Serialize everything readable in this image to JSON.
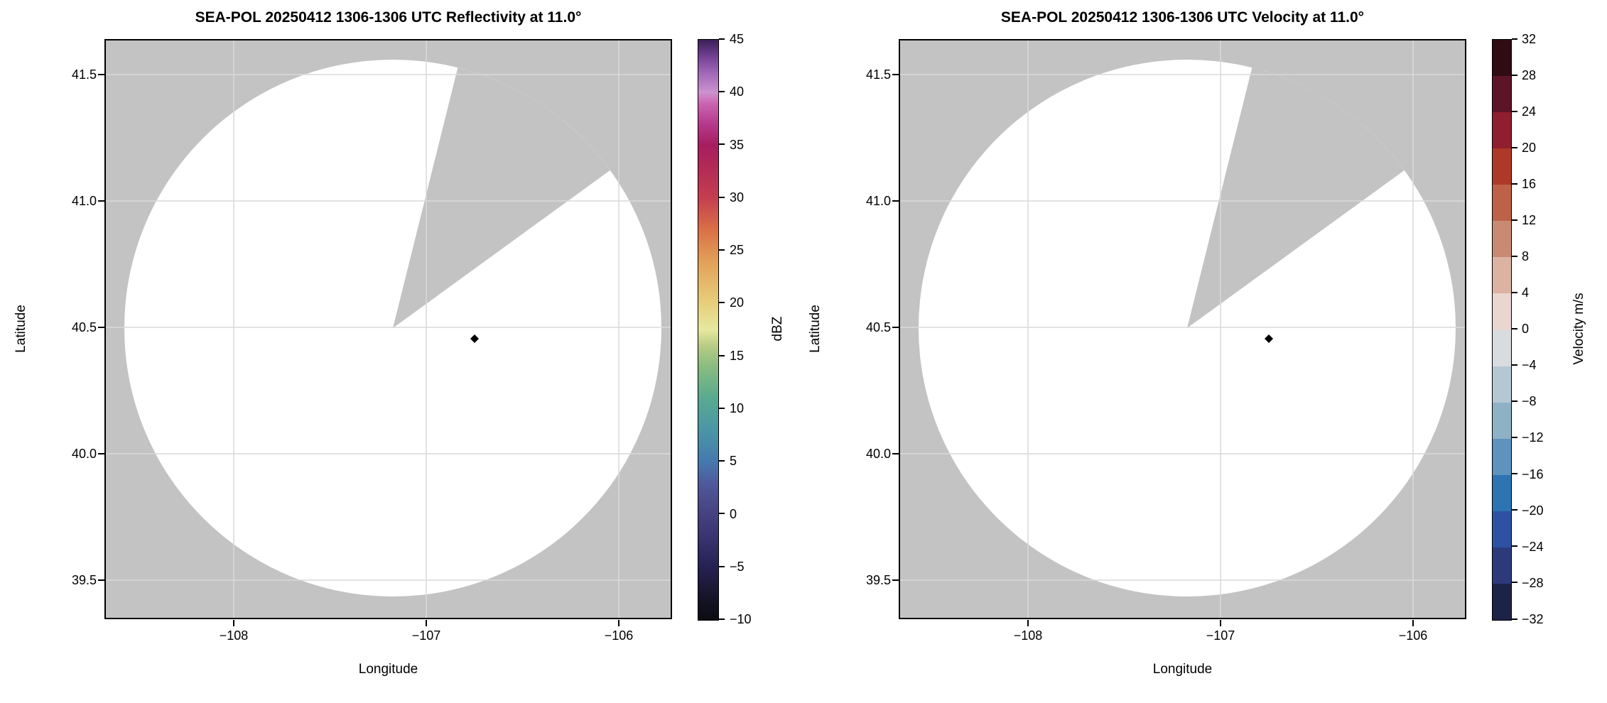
{
  "colors": {
    "page_background": "#ffffff",
    "no_data_gray": "#c3c3c3",
    "scan_area_white": "#ffffff",
    "gridline": "#d9d9d9",
    "axis_black": "#000000",
    "marker_black": "#000000"
  },
  "panels": [
    {
      "id": "reflectivity",
      "title": "SEA-POL 20250412 1306-1306 UTC Reflectivity at 11.0°",
      "xlabel": "Longitude",
      "ylabel": "Latitude",
      "x_tick_labels": [
        "−108",
        "−107",
        "−106"
      ],
      "y_tick_labels": [
        "41.5",
        "41.0",
        "40.5",
        "40.0",
        "39.5"
      ],
      "colorbar_label": "dBZ",
      "colorbar_tick_labels": [
        "45",
        "40",
        "35",
        "30",
        "25",
        "20",
        "15",
        "10",
        "5",
        "0",
        "−5",
        "−10"
      ]
    },
    {
      "id": "velocity",
      "title": "SEA-POL 20250412 1306-1306 UTC Velocity at 11.0°",
      "xlabel": "Longitude",
      "ylabel": "Latitude",
      "x_tick_labels": [
        "−108",
        "−107",
        "−106"
      ],
      "y_tick_labels": [
        "41.5",
        "41.0",
        "40.5",
        "40.0",
        "39.5"
      ],
      "colorbar_label": "Velocity m/s",
      "colorbar_tick_labels": [
        "32",
        "28",
        "24",
        "20",
        "16",
        "12",
        "8",
        "4",
        "0",
        "−4",
        "−8",
        "−12",
        "−16",
        "−20",
        "−24",
        "−28",
        "−32"
      ]
    }
  ],
  "chart_data": [
    {
      "type": "heatmap",
      "field": "radar_reflectivity_ppi",
      "title": "SEA-POL 20250412 1306-1306 UTC Reflectivity at 11.0°",
      "xlabel": "Longitude",
      "ylabel": "Latitude",
      "xlim": [
        -108.67,
        -105.72
      ],
      "ylim": [
        39.35,
        41.64
      ],
      "x_ticks": [
        -108,
        -107,
        -106
      ],
      "y_ticks": [
        41.5,
        41.0,
        40.5,
        40.0,
        39.5
      ],
      "grid": true,
      "elevation_deg": 11.0,
      "radar_center": {
        "lon": -107.17,
        "lat": 40.5
      },
      "scan_radius_deg_lat": 1.06,
      "missing_sector_azimuth_deg": [
        14,
        54
      ],
      "echo_coverage": "scan area blank white (no echoes shown); outside scan and missing sector shaded gray",
      "marker": {
        "lon": -106.75,
        "lat": 40.455,
        "shape": "diamond",
        "color": "#000000"
      },
      "colorbar": {
        "label": "dBZ",
        "min": -10,
        "max": 45,
        "tick_step": 5,
        "position": "right",
        "color_stops": [
          {
            "value": -10,
            "color": "#0b0b11"
          },
          {
            "value": -7,
            "color": "#1b1834"
          },
          {
            "value": -5,
            "color": "#262153"
          },
          {
            "value": -2,
            "color": "#3a3472"
          },
          {
            "value": 0,
            "color": "#464180"
          },
          {
            "value": 3,
            "color": "#4f5a9c"
          },
          {
            "value": 5,
            "color": "#4579ae"
          },
          {
            "value": 8,
            "color": "#4b96a6"
          },
          {
            "value": 11,
            "color": "#58aa90"
          },
          {
            "value": 14,
            "color": "#88bc80"
          },
          {
            "value": 16,
            "color": "#b8cc84"
          },
          {
            "value": 17.5,
            "color": "#e6e89e"
          },
          {
            "value": 20,
            "color": "#e7cf7b"
          },
          {
            "value": 24,
            "color": "#e2a058"
          },
          {
            "value": 27,
            "color": "#da7046"
          },
          {
            "value": 30,
            "color": "#c43f50"
          },
          {
            "value": 33,
            "color": "#b12a56"
          },
          {
            "value": 35,
            "color": "#a61d60"
          },
          {
            "value": 37,
            "color": "#b53a8c"
          },
          {
            "value": 39,
            "color": "#cb66b0"
          },
          {
            "value": 40,
            "color": "#cc93cf"
          },
          {
            "value": 42,
            "color": "#9c64b5"
          },
          {
            "value": 43.5,
            "color": "#6f3f92"
          },
          {
            "value": 45,
            "color": "#3b2058"
          }
        ]
      }
    },
    {
      "type": "heatmap",
      "field": "radar_radial_velocity_ppi",
      "title": "SEA-POL 20250412 1306-1306 UTC Velocity at 11.0°",
      "xlabel": "Longitude",
      "ylabel": "Latitude",
      "xlim": [
        -108.67,
        -105.72
      ],
      "ylim": [
        39.35,
        41.64
      ],
      "x_ticks": [
        -108,
        -107,
        -106
      ],
      "y_ticks": [
        41.5,
        41.0,
        40.5,
        40.0,
        39.5
      ],
      "grid": true,
      "elevation_deg": 11.0,
      "radar_center": {
        "lon": -107.17,
        "lat": 40.5
      },
      "scan_radius_deg_lat": 1.06,
      "missing_sector_azimuth_deg": [
        14,
        54
      ],
      "echo_coverage": "scan area blank white (no echoes shown); outside scan and missing sector shaded gray",
      "marker": {
        "lon": -106.75,
        "lat": 40.455,
        "shape": "diamond",
        "color": "#000000"
      },
      "colorbar": {
        "label": "Velocity m/s",
        "min": -32,
        "max": 32,
        "tick_step": 4,
        "position": "right",
        "band_colors": [
          "#1d2347",
          "#2c3a7c",
          "#2d52a4",
          "#2e73b2",
          "#5d93bd",
          "#8eb1c6",
          "#b5c7d2",
          "#d8dcdf",
          "#e9d6d0",
          "#dcb2a3",
          "#c98a74",
          "#bd6148",
          "#ad3a28",
          "#8f1e2e",
          "#5c1426",
          "#300b14"
        ]
      }
    }
  ]
}
